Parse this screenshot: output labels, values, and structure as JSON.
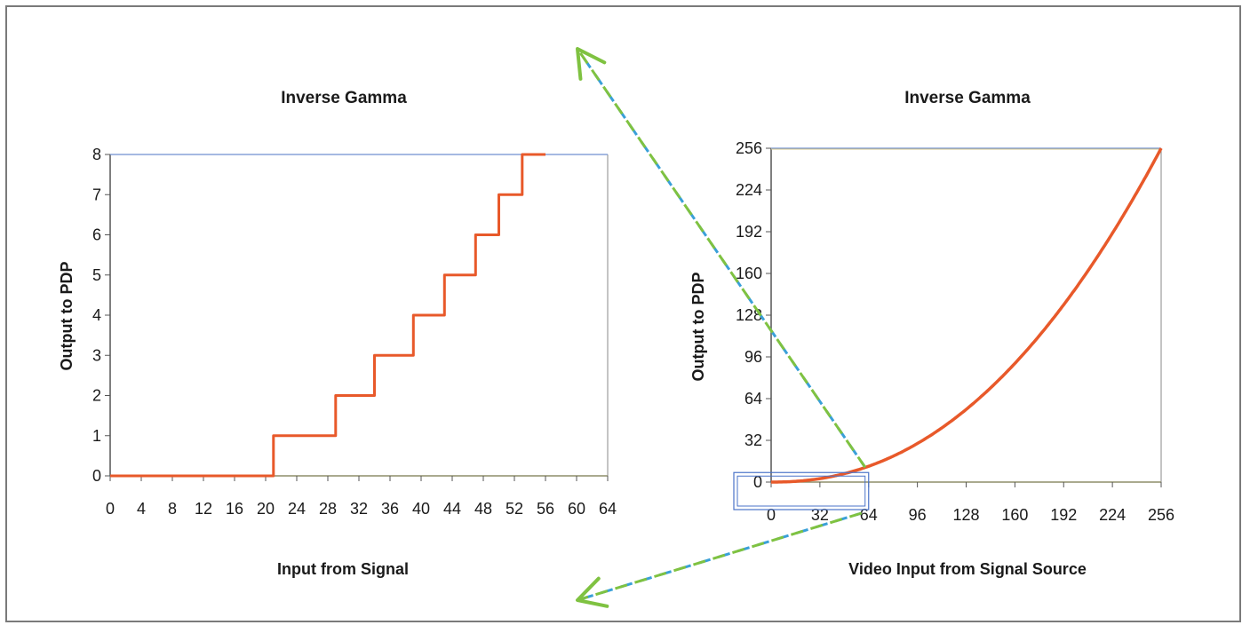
{
  "chart_data": [
    {
      "type": "line",
      "title": "Inverse Gamma",
      "xlabel": "Input from Signal",
      "ylabel": "Output to PDP",
      "xlim": [
        0,
        64
      ],
      "ylim": [
        0,
        8
      ],
      "xticks": [
        "0",
        "4",
        "8",
        "12",
        "16",
        "20",
        "24",
        "28",
        "32",
        "36",
        "40",
        "44",
        "48",
        "52",
        "56",
        "60",
        "64"
      ],
      "yticks": [
        "0",
        "1",
        "2",
        "3",
        "4",
        "5",
        "6",
        "7",
        "8"
      ],
      "grid": false,
      "series": [
        {
          "color": "#e8592a",
          "step": true,
          "points": [
            [
              0,
              0
            ],
            [
              21,
              0
            ],
            [
              21,
              1
            ],
            [
              29,
              1
            ],
            [
              29,
              2
            ],
            [
              34,
              2
            ],
            [
              34,
              3
            ],
            [
              39,
              3
            ],
            [
              39,
              4
            ],
            [
              43,
              4
            ],
            [
              43,
              5
            ],
            [
              47,
              5
            ],
            [
              47,
              6
            ],
            [
              50,
              6
            ],
            [
              50,
              7
            ],
            [
              53,
              7
            ],
            [
              53,
              8
            ],
            [
              56,
              8
            ]
          ]
        }
      ]
    },
    {
      "type": "line",
      "title": "Inverse Gamma",
      "xlabel": "Video Input from Signal Source",
      "ylabel": "Output to PDP",
      "xlim": [
        0,
        256
      ],
      "ylim": [
        0,
        256
      ],
      "xticks": [
        "0",
        "32",
        "64",
        "96",
        "128",
        "160",
        "192",
        "224",
        "256"
      ],
      "yticks": [
        "0",
        "32",
        "64",
        "96",
        "128",
        "160",
        "192",
        "224",
        "256"
      ],
      "grid": false,
      "series": [
        {
          "color": "#e8592a",
          "function": "x^2.2 scaled to 256",
          "gamma": 2.2
        }
      ],
      "annotations": {
        "zoom_region": {
          "x_range": [
            0,
            64
          ],
          "y_range": [
            0,
            8
          ],
          "color": "#4a73c8"
        },
        "arrow_color": "#7fc241",
        "arrow_dash_color": "#3aa0d8"
      }
    }
  ]
}
